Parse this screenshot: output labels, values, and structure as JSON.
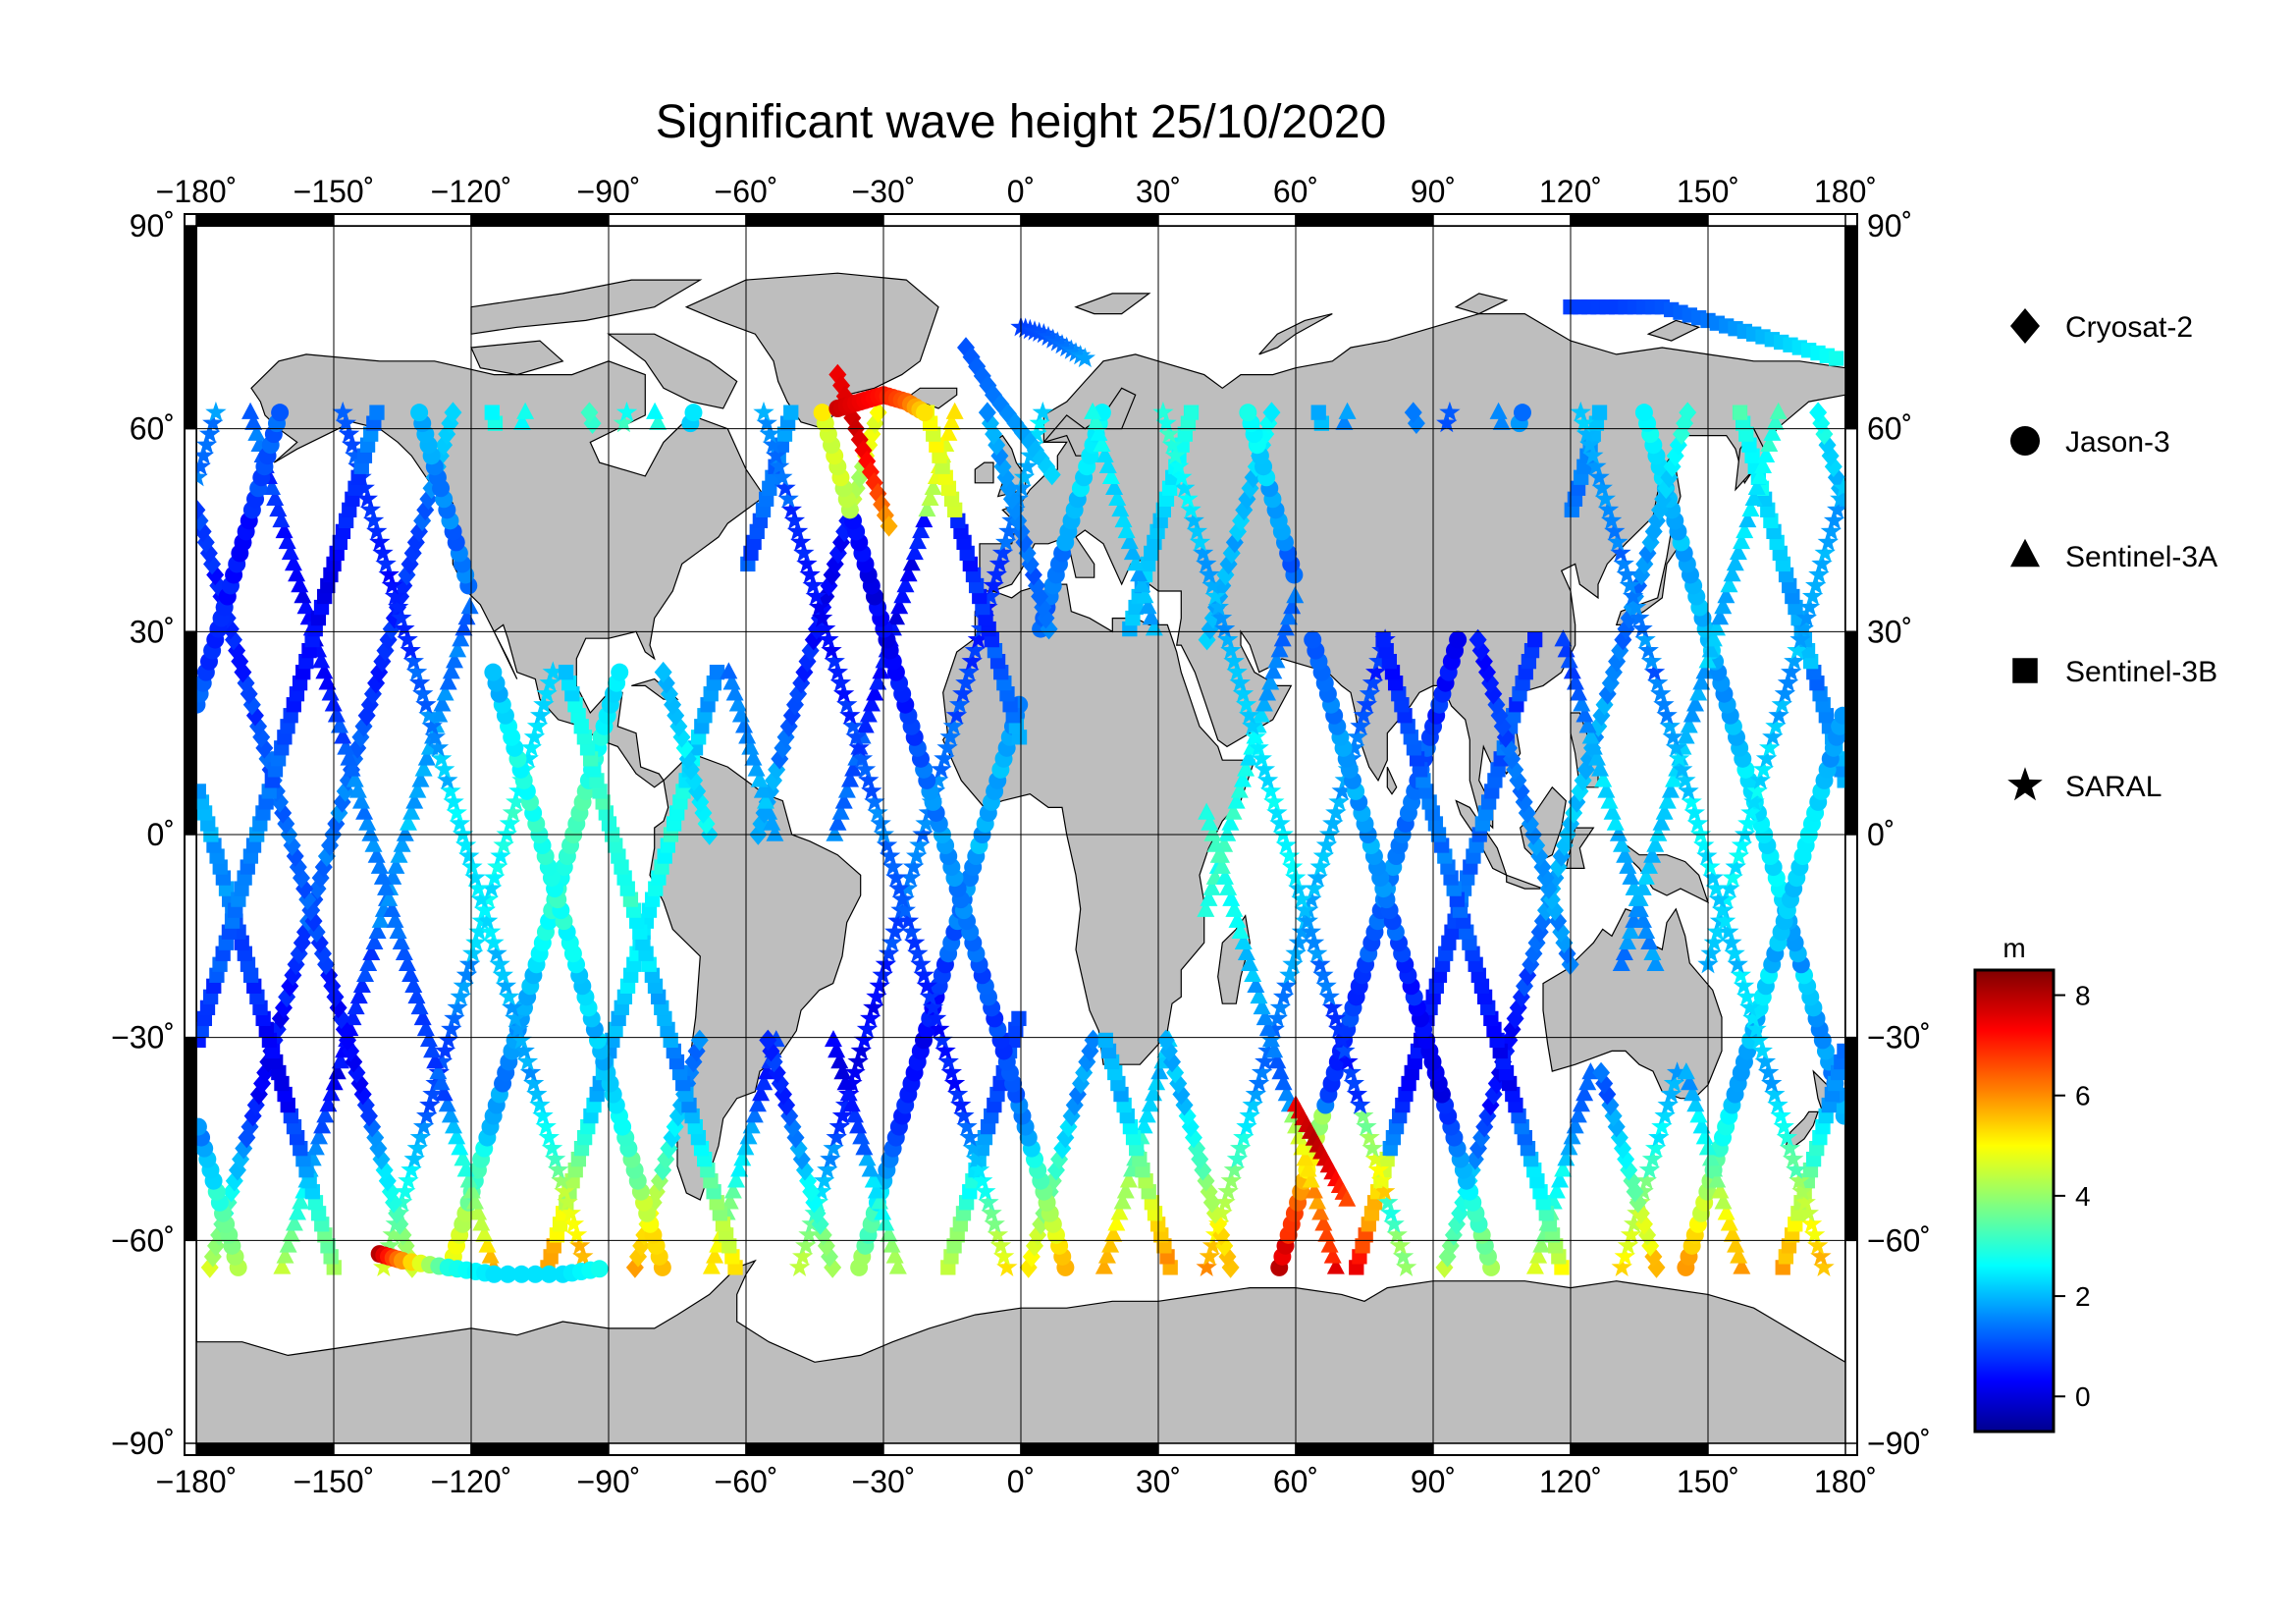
{
  "title": "Significant wave height 25/10/2020",
  "map": {
    "lon_ticks": [
      -180,
      -150,
      -120,
      -90,
      -60,
      -30,
      0,
      30,
      60,
      90,
      120,
      150,
      180
    ],
    "lat_ticks": [
      90,
      60,
      30,
      0,
      -30,
      -60,
      -90
    ],
    "lon_labels": [
      "−180˚",
      "−150˚",
      "−120˚",
      "−90˚",
      "−60˚",
      "−30˚",
      "0˚",
      "30˚",
      "60˚",
      "90˚",
      "120˚",
      "150˚",
      "180˚"
    ],
    "lat_labels": [
      "90˚",
      "60˚",
      "30˚",
      "0˚",
      "−30˚",
      "−60˚",
      "−90˚"
    ],
    "lon_range": [
      -180,
      180
    ],
    "lat_range": [
      -90,
      90
    ],
    "land_color": "#bebebe",
    "ocean_color": "#ffffff",
    "grid": true
  },
  "legend": {
    "items": [
      {
        "label": "Cryosat-2",
        "icon": "diamond-icon"
      },
      {
        "label": "Jason-3",
        "icon": "circle-icon"
      },
      {
        "label": "Sentinel-3A",
        "icon": "triangle-icon"
      },
      {
        "label": "Sentinel-3B",
        "icon": "square-icon"
      },
      {
        "label": "SARAL",
        "icon": "star-icon"
      }
    ]
  },
  "colorbar": {
    "unit": "m",
    "ticks": [
      8,
      6,
      4,
      2,
      0
    ],
    "tick_labels": [
      "8",
      "6",
      "4",
      "2",
      "0"
    ],
    "range": [
      -0.7,
      8.5
    ],
    "colormap": [
      "#00008f",
      "#0000ff",
      "#0080ff",
      "#00ffff",
      "#80ff80",
      "#ffff00",
      "#ff8000",
      "#ff0000",
      "#800000"
    ]
  },
  "chart_data": {
    "type": "scatter",
    "title": "Significant wave height 25/10/2020",
    "x_label": "",
    "y_label": "",
    "xlim": [
      -180,
      180
    ],
    "ylim": [
      -90,
      90
    ],
    "color_unit": "m",
    "series": [
      {
        "name": "Cryosat-2",
        "marker": "diamond",
        "tracks": [
          {
            "lon": [
              -12,
              -6,
              2,
              8
            ],
            "lat": [
              72,
              65,
              58,
              52
            ],
            "swh": [
              1.2,
              1.5,
              2.0,
              2.5
            ]
          },
          {
            "lon": [
              -40,
              -36,
              -32,
              -28
            ],
            "lat": [
              68,
              60,
              52,
              44
            ],
            "swh": [
              7.5,
              7.8,
              7.0,
              5.5
            ]
          }
        ]
      },
      {
        "name": "Jason-3",
        "marker": "circle",
        "tracks": [
          {
            "lon": [
              -40,
              -35,
              -30,
              -25,
              -20
            ],
            "lat": [
              63,
              64,
              65,
              64,
              62
            ],
            "swh": [
              7.8,
              7.5,
              7.2,
              6.5,
              5.0
            ]
          },
          {
            "lon": [
              -140,
              -135,
              -125,
              -115,
              -100,
              -90
            ],
            "lat": [
              -62,
              -63,
              -64,
              -65,
              -65,
              -64
            ],
            "swh": [
              8.0,
              6.0,
              3.0,
              2.5,
              2.5,
              3.0
            ]
          }
        ]
      },
      {
        "name": "Sentinel-3A",
        "marker": "triangle",
        "tracks": [
          {
            "lon": [
              60,
              64,
              68,
              72
            ],
            "lat": [
              -40,
              -45,
              -50,
              -55
            ],
            "swh": [
              7.5,
              8.0,
              7.5,
              6.5
            ]
          }
        ]
      },
      {
        "name": "Sentinel-3B",
        "marker": "square",
        "tracks": [
          {
            "lon": [
              120,
              130,
              140,
              150,
              160,
              170,
              180
            ],
            "lat": [
              78,
              78,
              78,
              76,
              74,
              72,
              70
            ],
            "swh": [
              1.0,
              1.0,
              1.2,
              1.5,
              2.0,
              2.5,
              3.0
            ]
          }
        ]
      },
      {
        "name": "SARAL",
        "marker": "star",
        "tracks": [
          {
            "lon": [
              0,
              5,
              10,
              15
            ],
            "lat": [
              75,
              74,
              72,
              70
            ],
            "swh": [
              1.0,
              1.2,
              1.5,
              2.0
            ]
          }
        ]
      }
    ]
  }
}
